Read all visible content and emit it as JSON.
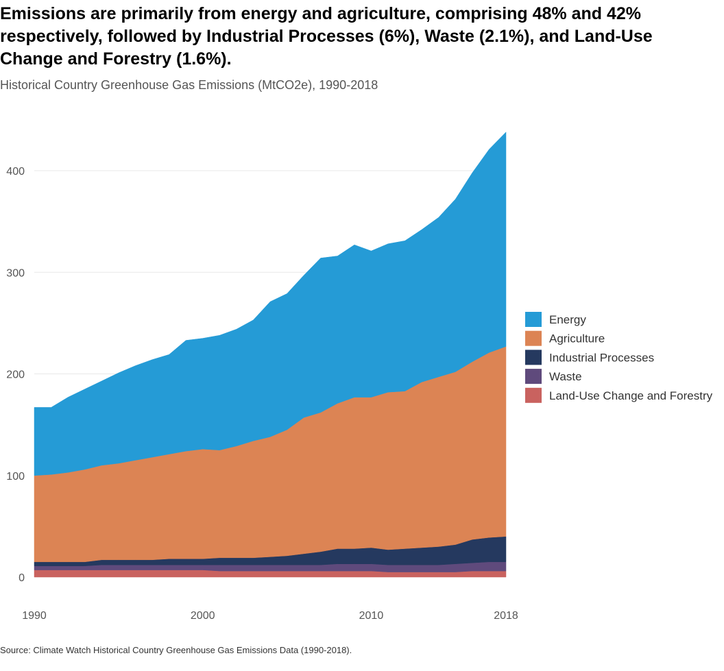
{
  "title": "Emissions are primarily from energy and agriculture, comprising 48% and 42% respectively, followed by Industrial Processes (6%), Waste (2.1%), and Land-Use Change and Forestry (1.6%).",
  "subtitle": "Historical Country Greenhouse Gas Emissions (MtCO2e), 1990-2018",
  "source": "Source: Climate Watch Historical Country Greenhouse Gas Emissions Data (1990-2018).",
  "chart_data": {
    "type": "area",
    "stacked": true,
    "x": [
      1990,
      1991,
      1992,
      1993,
      1994,
      1995,
      1996,
      1997,
      1998,
      1999,
      2000,
      2001,
      2002,
      2003,
      2004,
      2005,
      2006,
      2007,
      2008,
      2009,
      2010,
      2011,
      2012,
      2013,
      2014,
      2015,
      2016,
      2017,
      2018
    ],
    "x_ticks": [
      1990,
      2000,
      2010,
      2018
    ],
    "y_ticks": [
      0,
      100,
      200,
      300,
      400
    ],
    "ylim": [
      0,
      440
    ],
    "grid": true,
    "legend_position": "right",
    "series": [
      {
        "name": "Land-Use Change and Forestry",
        "color": "#c9625f",
        "values": [
          7,
          7,
          7,
          7,
          7,
          7,
          7,
          7,
          7,
          7,
          7,
          6,
          6,
          6,
          6,
          6,
          6,
          6,
          6,
          6,
          6,
          5,
          5,
          5,
          5,
          5,
          6,
          6,
          6
        ]
      },
      {
        "name": "Waste",
        "color": "#5f4a7c",
        "values": [
          4,
          4,
          4,
          4,
          5,
          5,
          5,
          5,
          5,
          5,
          5,
          6,
          6,
          6,
          6,
          6,
          6,
          6,
          7,
          7,
          7,
          7,
          7,
          7,
          7,
          8,
          8,
          9,
          9
        ]
      },
      {
        "name": "Industrial Processes",
        "color": "#25395f",
        "values": [
          4,
          4,
          4,
          4,
          5,
          5,
          5,
          5,
          6,
          6,
          6,
          7,
          7,
          7,
          8,
          9,
          11,
          13,
          15,
          15,
          16,
          15,
          16,
          17,
          18,
          19,
          23,
          24,
          25
        ]
      },
      {
        "name": "Agriculture",
        "color": "#dc8454",
        "values": [
          85,
          86,
          88,
          91,
          93,
          95,
          98,
          101,
          103,
          106,
          108,
          106,
          110,
          115,
          118,
          124,
          134,
          137,
          143,
          149,
          148,
          155,
          155,
          163,
          167,
          170,
          175,
          182,
          187
        ]
      },
      {
        "name": "Energy",
        "color": "#259bd6",
        "values": [
          67,
          66,
          74,
          79,
          83,
          89,
          93,
          96,
          98,
          109,
          109,
          113,
          115,
          119,
          133,
          134,
          140,
          152,
          145,
          150,
          144,
          146,
          148,
          150,
          157,
          170,
          186,
          200,
          211
        ]
      }
    ],
    "legend_order": [
      "Energy",
      "Agriculture",
      "Industrial Processes",
      "Waste",
      "Land-Use Change and Forestry"
    ]
  }
}
